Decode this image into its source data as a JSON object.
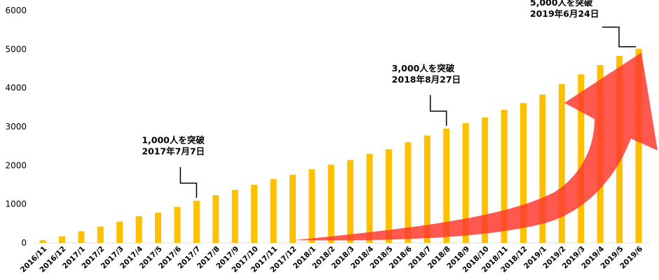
{
  "chart_data": {
    "type": "bar",
    "title": "",
    "xlabel": "",
    "ylabel": "",
    "ylim": [
      0,
      6000
    ],
    "yticks": [
      "0",
      "1000",
      "2000",
      "3000",
      "4000",
      "5000",
      "6000"
    ],
    "grid": false,
    "categories": [
      "2016/11",
      "2016/12",
      "2017/1",
      "2017/2",
      "2017/3",
      "2017/4",
      "2017/5",
      "2017/6",
      "2017/7",
      "2017/8",
      "2017/9",
      "2017/10",
      "2017/11",
      "2017/12",
      "2018/1",
      "2018/2",
      "2018/3",
      "2018/4",
      "2018/5",
      "2018/6",
      "2018/7",
      "2018/8",
      "2018/9",
      "2018/10",
      "2018/11",
      "2018/12",
      "2019/1",
      "2019/2",
      "2019/3",
      "2019/4",
      "2019/5",
      "2019/6"
    ],
    "values": [
      70,
      170,
      300,
      420,
      550,
      690,
      780,
      930,
      1090,
      1230,
      1370,
      1500,
      1650,
      1760,
      1900,
      2020,
      2140,
      2300,
      2420,
      2600,
      2770,
      2950,
      3090,
      3240,
      3440,
      3610,
      3830,
      4100,
      4350,
      4590,
      4830,
      5010
    ],
    "bar_color": "#FFC000",
    "arrow_color": "#FF3B30",
    "annotations": [
      {
        "category": "2017/7",
        "line1": "1,000人を突破",
        "line2": "2017年7月7日"
      },
      {
        "category": "2018/8",
        "line1": "3,000人を突破",
        "line2": "2018年8月27日"
      },
      {
        "category": "2019/6",
        "line1": "5,000人を突破",
        "line2": "2019年6月24日"
      }
    ]
  }
}
